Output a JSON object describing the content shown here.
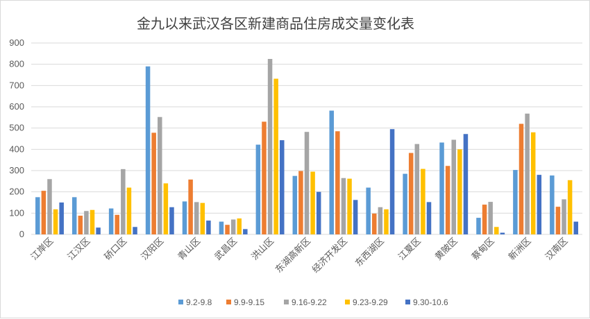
{
  "chart_data": {
    "type": "bar",
    "title": "金九以来武汉各区新建商品住房成交量变化表",
    "xlabel": "",
    "ylabel": "",
    "ylim": [
      0,
      900
    ],
    "yticks": [
      0,
      100,
      200,
      300,
      400,
      500,
      600,
      700,
      800,
      900
    ],
    "grid": true,
    "legend_position": "bottom",
    "categories": [
      "江岸区",
      "江汉区",
      "硚口区",
      "汉阳区",
      "青山区",
      "武昌区",
      "洪山区",
      "东湖高新区",
      "经济开发区",
      "东西湖区",
      "江夏区",
      "黄陂区",
      "蔡甸区",
      "新洲区",
      "汉南区"
    ],
    "series": [
      {
        "name": "9.2-9.8",
        "color": "#5b9bd5",
        "values": [
          175,
          175,
          122,
          790,
          155,
          60,
          422,
          275,
          582,
          220,
          285,
          432,
          78,
          303,
          277
        ]
      },
      {
        "name": "9.9-9.15",
        "color": "#ed7d31",
        "values": [
          205,
          88,
          92,
          478,
          258,
          45,
          530,
          298,
          485,
          98,
          383,
          322,
          140,
          520,
          130
        ]
      },
      {
        "name": "9.16-9.22",
        "color": "#a5a5a5",
        "values": [
          260,
          110,
          307,
          552,
          152,
          70,
          825,
          482,
          265,
          128,
          425,
          445,
          153,
          568,
          165
        ]
      },
      {
        "name": "9.23-9.29",
        "color": "#ffc000",
        "values": [
          118,
          115,
          220,
          240,
          148,
          75,
          732,
          295,
          262,
          118,
          308,
          400,
          35,
          480,
          255
        ]
      },
      {
        "name": "9.30-10.6",
        "color": "#4472c4",
        "values": [
          150,
          32,
          35,
          128,
          65,
          25,
          443,
          200,
          162,
          495,
          152,
          472,
          8,
          280,
          60
        ]
      }
    ]
  }
}
